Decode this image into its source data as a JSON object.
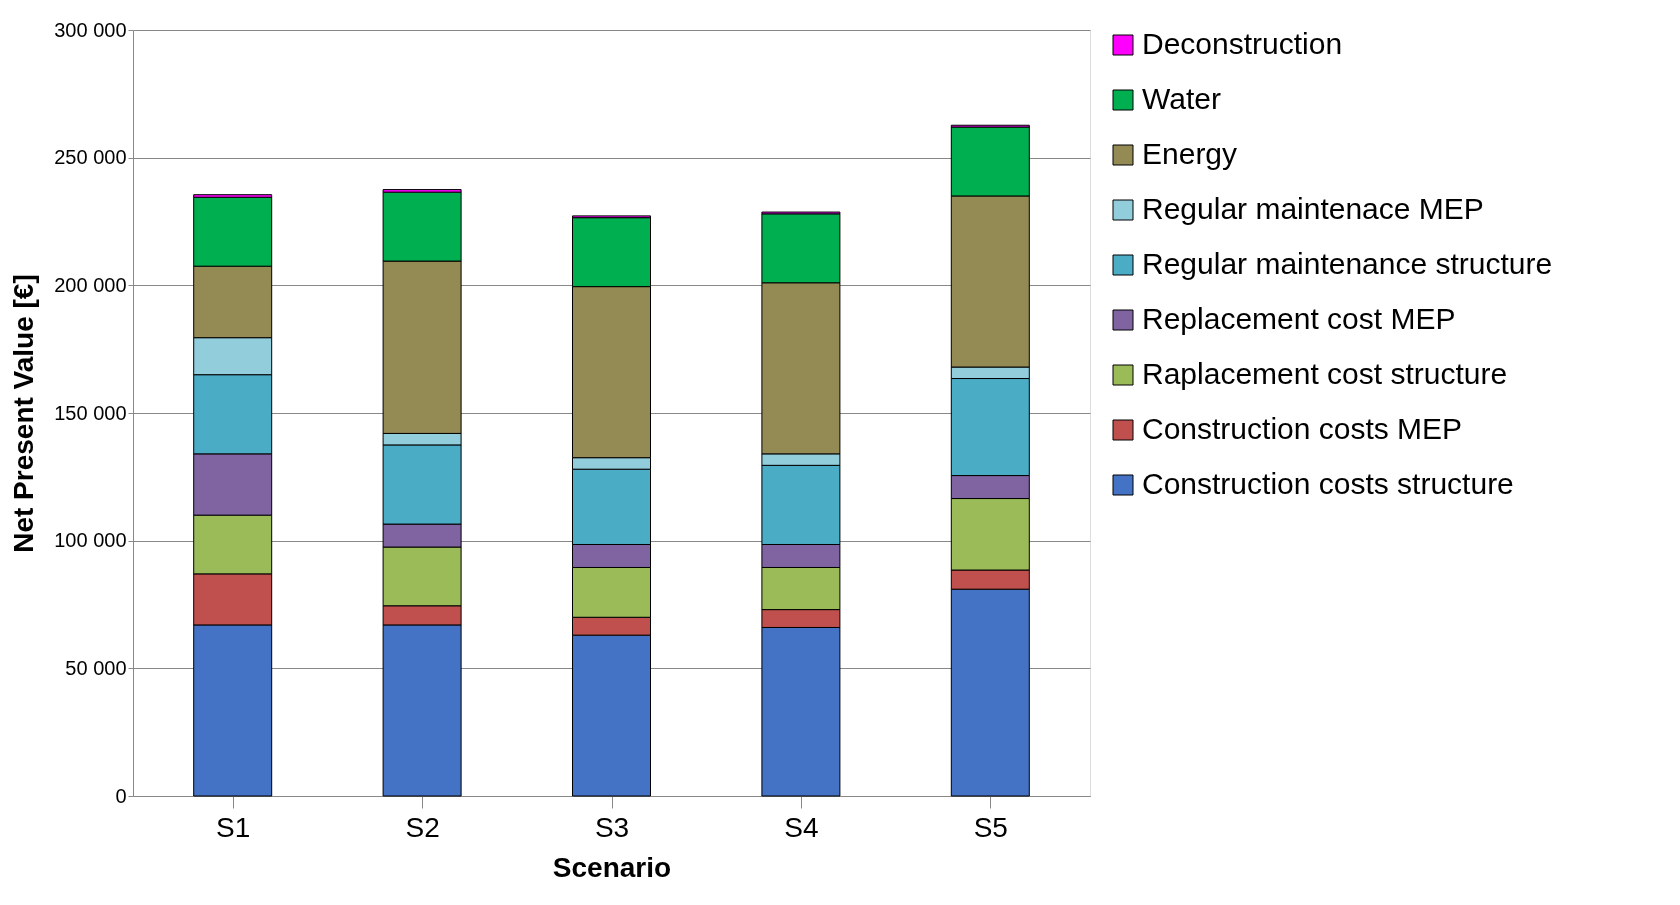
{
  "chart_data": {
    "type": "bar",
    "stacked": true,
    "xlabel": "Scenario",
    "ylabel": "Net Present Value [€]",
    "categories": [
      "S1",
      "S2",
      "S3",
      "S4",
      "S5"
    ],
    "series": [
      {
        "name": "Construction costs structure",
        "color": "#4472c4",
        "values": [
          67000,
          67000,
          63000,
          66000,
          81000
        ]
      },
      {
        "name": "Construction costs MEP",
        "color": "#c0504d",
        "values": [
          20000,
          7500,
          7000,
          7000,
          7500
        ]
      },
      {
        "name": "Raplacement cost structure",
        "color": "#9bbb59",
        "values": [
          23000,
          23000,
          19500,
          16500,
          28000
        ]
      },
      {
        "name": "Replacement cost MEP",
        "color": "#8064a2",
        "values": [
          24000,
          9000,
          9000,
          9000,
          9000
        ]
      },
      {
        "name": "Regular maintenance structure",
        "color": "#4bacc6",
        "values": [
          31000,
          31000,
          29500,
          31000,
          38000
        ]
      },
      {
        "name": "Regular maintenace MEP",
        "color": "#92cddc",
        "values": [
          14500,
          4500,
          4500,
          4500,
          4500
        ]
      },
      {
        "name": "Energy",
        "color": "#948a54",
        "values": [
          28000,
          67500,
          67000,
          67000,
          67000
        ]
      },
      {
        "name": "Water",
        "color": "#00b050",
        "values": [
          27000,
          27000,
          27000,
          27000,
          27000
        ]
      },
      {
        "name": "Deconstruction",
        "color": "#ff00ff",
        "values": [
          1000,
          1000,
          700,
          700,
          700
        ]
      }
    ],
    "ylim": [
      0,
      300000
    ],
    "yticks": [
      {
        "value": 0,
        "label": "0"
      },
      {
        "value": 50000,
        "label": "50 000"
      },
      {
        "value": 100000,
        "label": "100 000"
      },
      {
        "value": 150000,
        "label": "150 000"
      },
      {
        "value": 200000,
        "label": "200 000"
      },
      {
        "value": 250000,
        "label": "250 000"
      },
      {
        "value": 300000,
        "label": "300 000"
      }
    ],
    "grid": "y",
    "legend": "right"
  }
}
